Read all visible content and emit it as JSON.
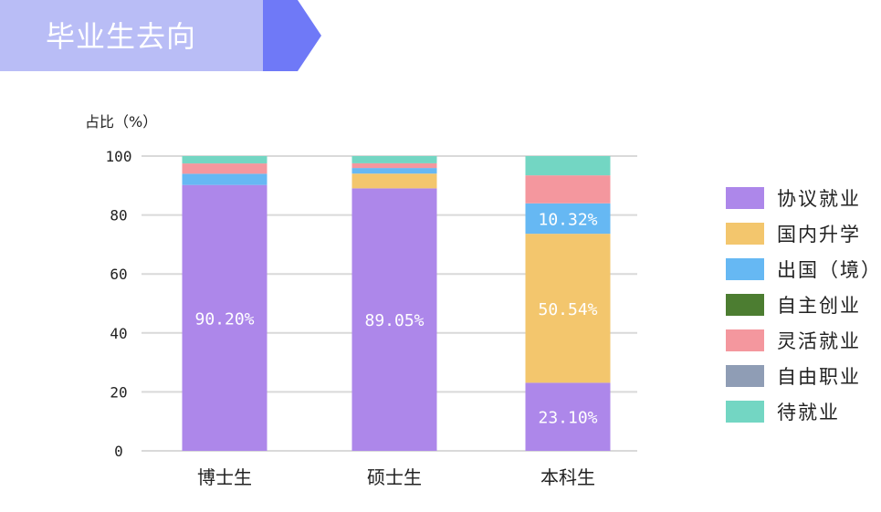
{
  "header": {
    "title": "毕业生去向"
  },
  "chart_data": {
    "type": "bar",
    "stacked": true,
    "ylabel": "占比（%）",
    "ylim": [
      0,
      100
    ],
    "yticks": [
      0,
      20,
      40,
      60,
      80,
      100
    ],
    "grid": true,
    "legend_position": "right",
    "categories": [
      "博士生",
      "硕士生",
      "本科生"
    ],
    "series": [
      {
        "name": "协议就业",
        "color": "#ad87ea",
        "values": [
          90.2,
          89.05,
          23.1
        ],
        "labels": [
          "90.20%",
          "89.05%",
          "23.10%"
        ]
      },
      {
        "name": "国内升学",
        "color": "#f3c66d",
        "values": [
          0,
          5.0,
          50.54
        ],
        "labels": [
          "",
          "",
          "50.54%"
        ]
      },
      {
        "name": "出国（境）",
        "color": "#66b8f3",
        "values": [
          3.8,
          1.9,
          10.32
        ],
        "labels": [
          "",
          "",
          "10.32%"
        ]
      },
      {
        "name": "自主创业",
        "color": "#4c7d31",
        "values": [
          0,
          0,
          0
        ],
        "labels": [
          "",
          "",
          ""
        ]
      },
      {
        "name": "灵活就业",
        "color": "#f4979e",
        "values": [
          3.5,
          1.6,
          9.5
        ],
        "labels": [
          "",
          "",
          ""
        ]
      },
      {
        "name": "自由职业",
        "color": "#8f9db5",
        "values": [
          0,
          0,
          0
        ],
        "labels": [
          "",
          "",
          ""
        ]
      },
      {
        "name": "待就业",
        "color": "#73d6c3",
        "values": [
          2.5,
          2.45,
          6.54
        ],
        "labels": [
          "",
          "",
          ""
        ]
      }
    ]
  }
}
